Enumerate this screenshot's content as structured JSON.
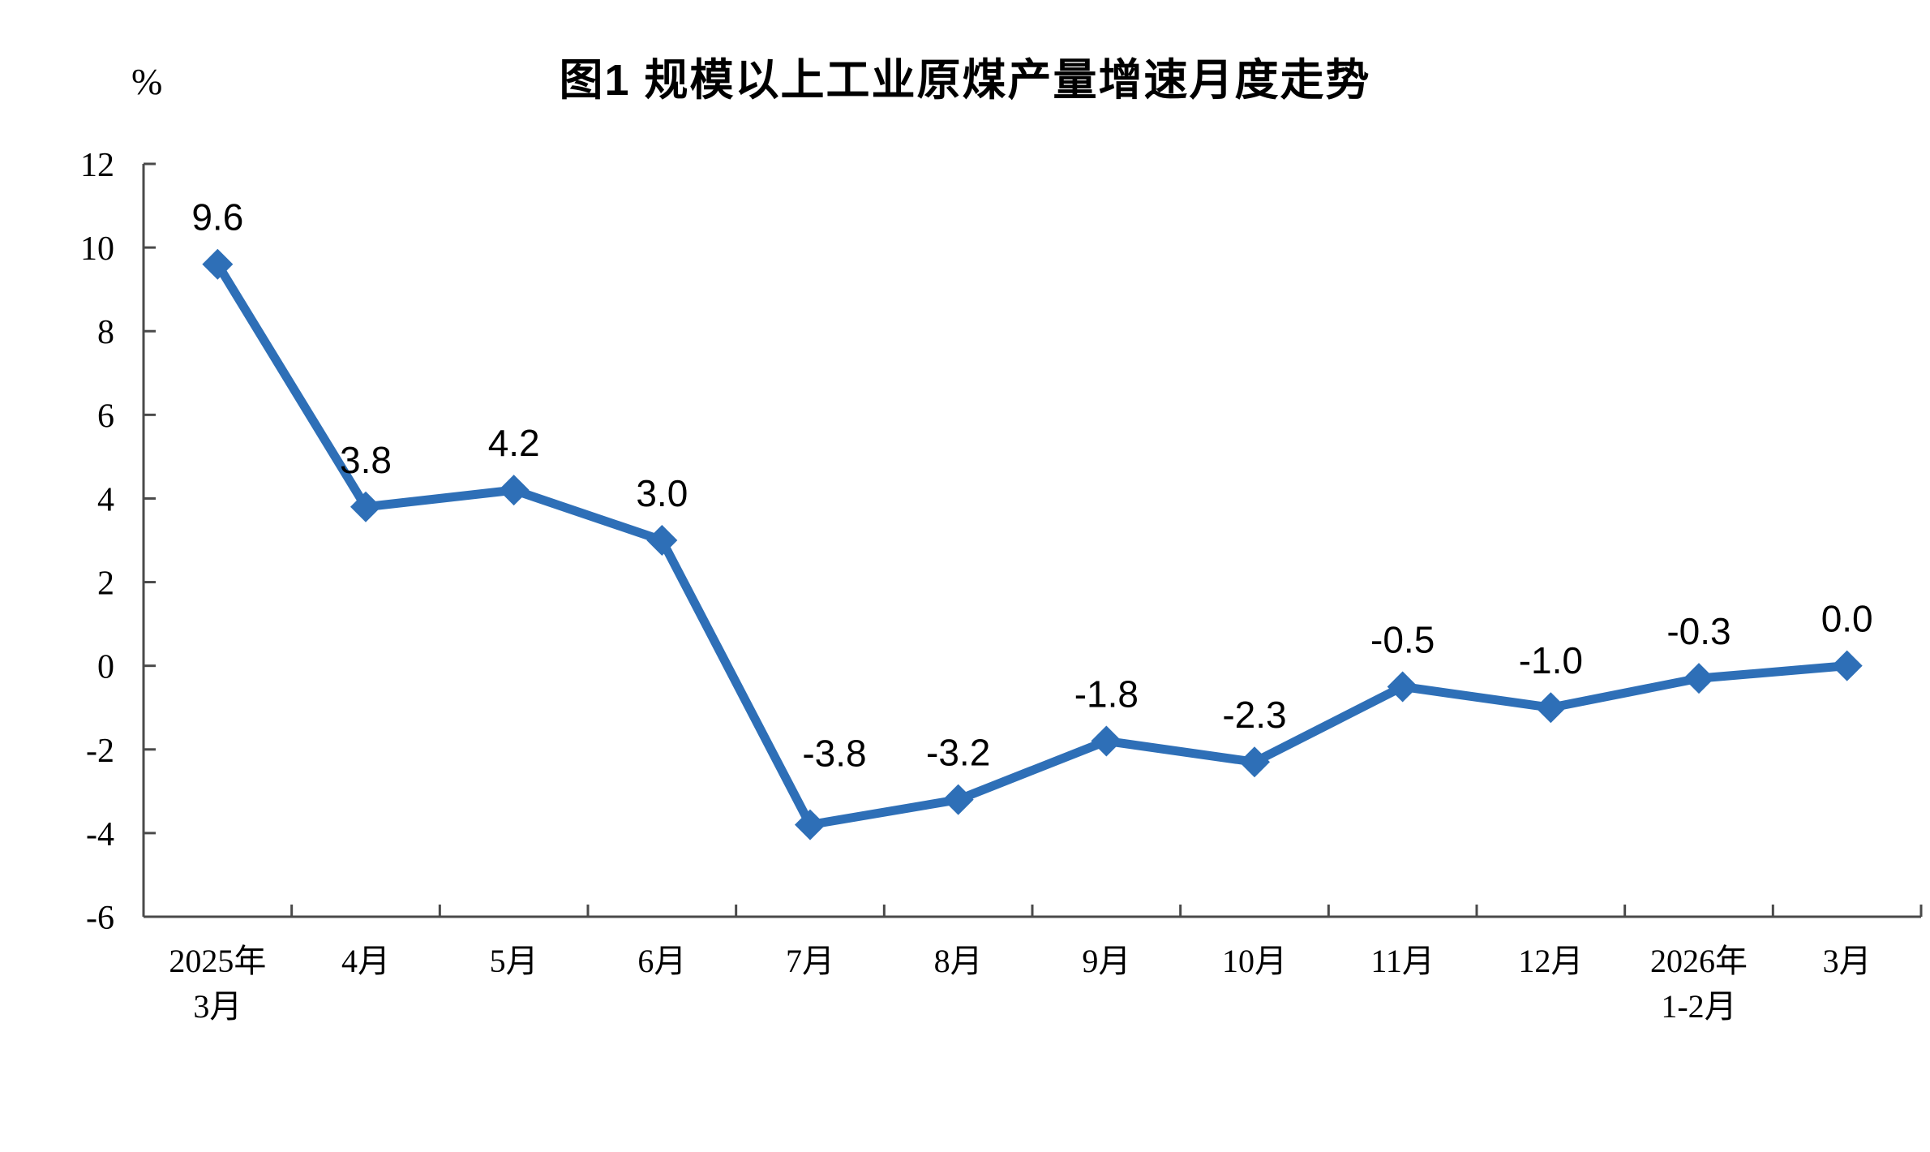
{
  "chart_data": {
    "type": "line",
    "title": "图1  规模以上工业原煤产量增速月度走势",
    "unit_label": "%",
    "categories": [
      [
        "2025年",
        "3月"
      ],
      [
        "4月"
      ],
      [
        "5月"
      ],
      [
        "6月"
      ],
      [
        "7月"
      ],
      [
        "8月"
      ],
      [
        "9月"
      ],
      [
        "10月"
      ],
      [
        "11月"
      ],
      [
        "12月"
      ],
      [
        "2026年",
        "1-2月"
      ],
      [
        "3月"
      ]
    ],
    "values": [
      9.6,
      3.8,
      4.2,
      3.0,
      -3.8,
      -3.2,
      -1.8,
      -2.3,
      -0.5,
      -1.0,
      -0.3,
      0.0
    ],
    "data_labels": [
      "9.6",
      "3.8",
      "4.2",
      "3.0",
      "-3.8",
      "-3.2",
      "-1.8",
      "-2.3",
      "-0.5",
      "-1.0",
      "-0.3",
      "0.0"
    ],
    "ylim": [
      -6,
      12
    ],
    "yticks": [
      12,
      10,
      8,
      6,
      4,
      2,
      0,
      -2,
      -4,
      -6
    ],
    "grid": false,
    "legend": "none",
    "line_color": "#2E6FB7",
    "marker": "diamond",
    "axis_color": "#4a4a4a",
    "text_color": "#000000"
  }
}
